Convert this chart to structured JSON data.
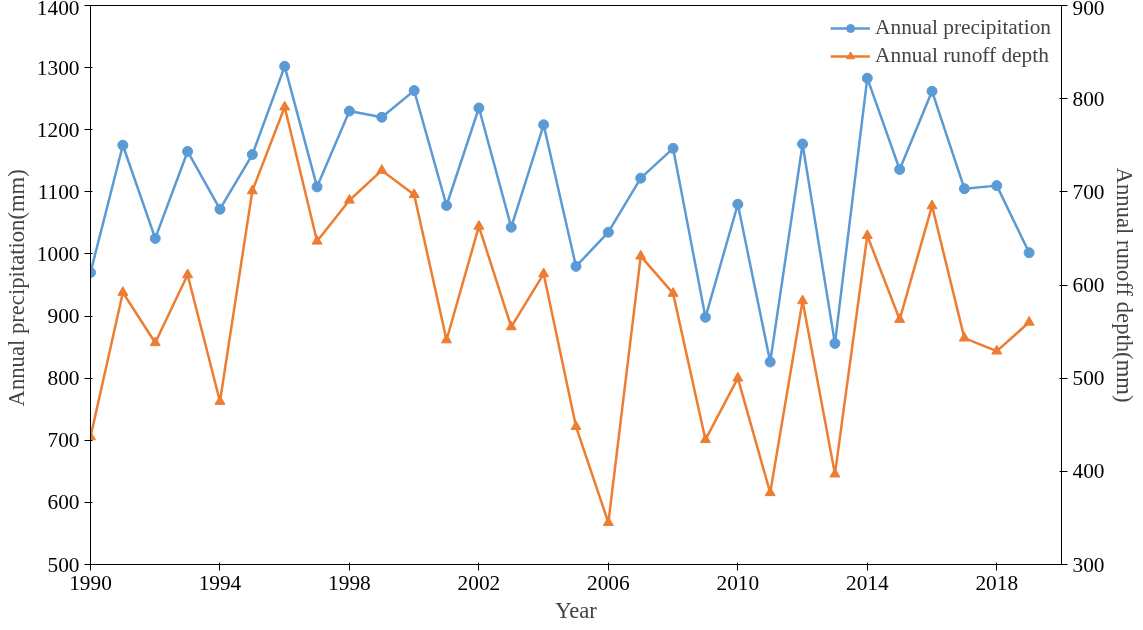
{
  "chart_data": {
    "type": "line",
    "xlabel": "Year",
    "ylabel": "Annual  precipitation(mm)",
    "y2label": "Annual runoff depth(mm)",
    "x": [
      1990,
      1991,
      1992,
      1993,
      1994,
      1995,
      1996,
      1997,
      1998,
      1999,
      2000,
      2001,
      2002,
      2003,
      2004,
      2005,
      2006,
      2007,
      2008,
      2009,
      2010,
      2011,
      2012,
      2013,
      2014,
      2015,
      2016,
      2017,
      2018,
      2019
    ],
    "series": [
      {
        "name": "Annual precipitation",
        "color": "#5b9bd5",
        "marker": "circle",
        "values": [
          970,
          1175,
          1025,
          1165,
          1072,
          1160,
          1302,
          1108,
          1230,
          1220,
          1263,
          1078,
          1235,
          1043,
          1208,
          980,
          1035,
          1122,
          1170,
          898,
          1080,
          826,
          1177,
          856,
          1283,
          1136,
          1262,
          1105,
          1110,
          1002
        ]
      },
      {
        "name": "Annual runoff depth",
        "color": "#ed7d31",
        "marker": "triangle",
        "axis": "y2",
        "values": [
          437,
          592,
          538,
          611,
          475,
          701,
          791,
          647,
          691,
          723,
          697,
          541,
          663,
          555,
          612,
          448,
          345,
          631,
          591,
          434,
          500,
          377,
          583,
          397,
          653,
          563,
          685,
          543,
          529,
          560
        ]
      }
    ],
    "xlim": [
      1990,
      2020
    ],
    "xticks": [
      1990,
      1994,
      1998,
      2002,
      2006,
      2010,
      2014,
      2018
    ],
    "ylim": [
      500,
      1400
    ],
    "yticks": [
      500,
      600,
      700,
      800,
      900,
      1000,
      1100,
      1200,
      1300,
      1400
    ],
    "y2lim": [
      300,
      900
    ],
    "y2ticks": [
      300,
      400,
      500,
      600,
      700,
      800,
      900
    ],
    "legend": "top right",
    "grid": false
  }
}
